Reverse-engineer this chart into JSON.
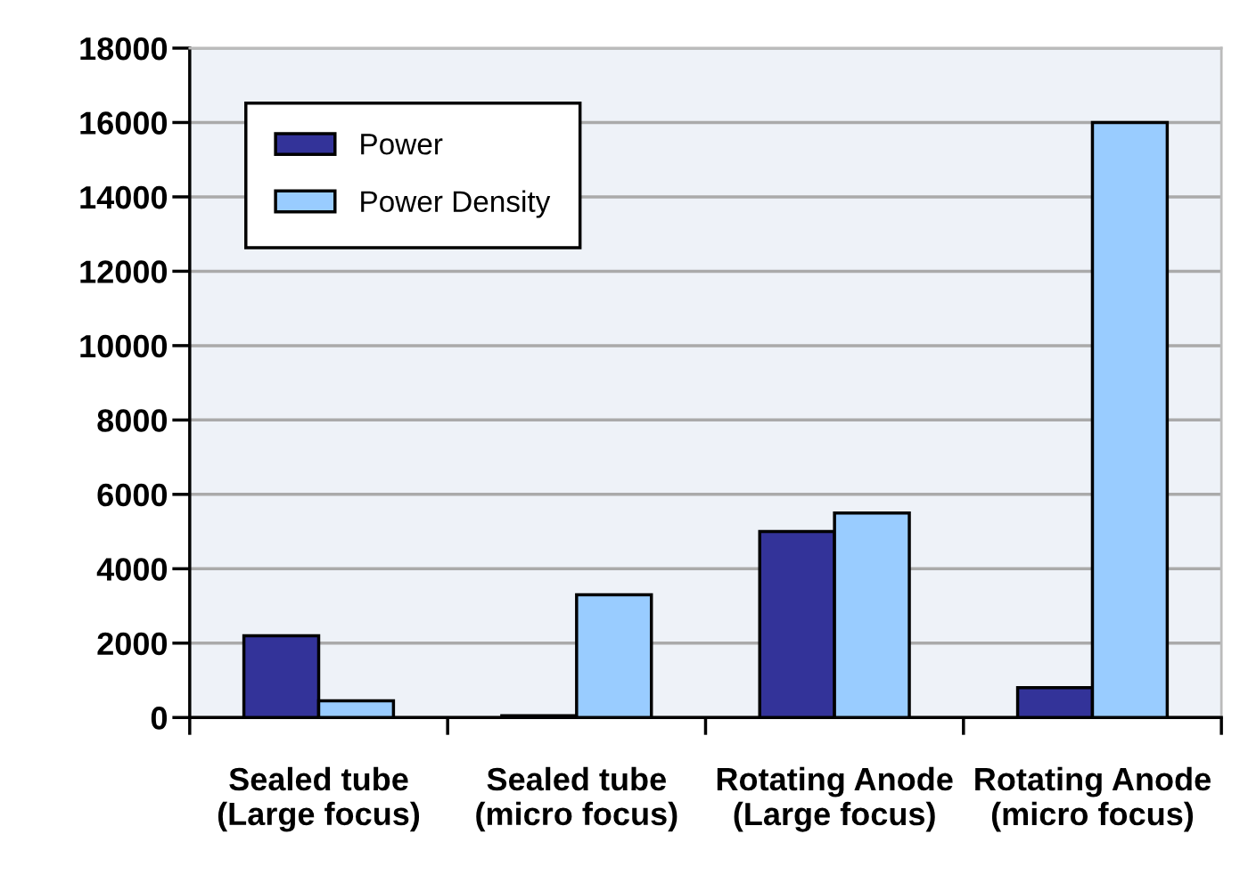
{
  "chart_data": {
    "type": "bar",
    "categories": [
      "Sealed tube\n(Large focus)",
      "Sealed tube\n(micro focus)",
      "Rotating Anode\n(Large focus)",
      "Rotating Anode\n(micro focus)"
    ],
    "series": [
      {
        "name": "Power",
        "color": "#333399",
        "values": [
          2200,
          50,
          5000,
          800
        ]
      },
      {
        "name": "Power Density",
        "color": "#99ccff",
        "values": [
          450,
          3300,
          5500,
          16000
        ]
      }
    ],
    "ylim": [
      0,
      18000
    ],
    "yticks": [
      0,
      2000,
      4000,
      6000,
      8000,
      10000,
      12000,
      14000,
      16000,
      18000
    ],
    "grid": "y",
    "legend": "top left"
  }
}
